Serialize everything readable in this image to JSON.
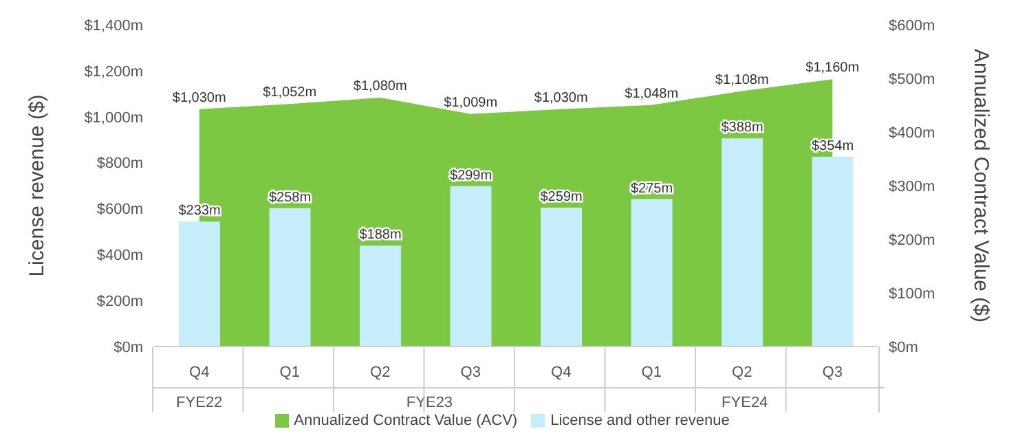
{
  "chart_data": {
    "type": "bar",
    "ylabel": "License revenue ($)",
    "y2label": "Annualized Contract Value ($)",
    "categories": [
      "Q4",
      "Q1",
      "Q2",
      "Q3",
      "Q4",
      "Q1",
      "Q2",
      "Q3"
    ],
    "annotations": [
      "FYE22",
      "FYE23",
      "FYE24"
    ],
    "series": [
      {
        "name": "Annualized Contract Value (ACV)",
        "type": "area",
        "color": "#7cc843",
        "values": [
          1030,
          1052,
          1080,
          1009,
          1030,
          1048,
          1108,
          1160
        ],
        "value_labels": [
          "$1,030m",
          "$1,052m",
          "$1,080m",
          "$1,009m",
          "$1,030m",
          "$1,048m",
          "$1,108m",
          "$1,160m"
        ]
      },
      {
        "name": "License and other revenue",
        "axis": "y2",
        "color": "#c5eefa",
        "values": [
          233,
          258,
          188,
          299,
          259,
          275,
          388,
          354
        ],
        "value_labels": [
          "$233m",
          "$258m",
          "$188m",
          "$299m",
          "$259m",
          "$275m",
          "$388m",
          "$354m"
        ]
      }
    ],
    "ylim": [
      0,
      1400
    ],
    "yticks": [
      {
        "value": 0,
        "label": "$0m"
      },
      {
        "value": 200,
        "label": "$200m"
      },
      {
        "value": 400,
        "label": "$400m"
      },
      {
        "value": 600,
        "label": "$600m"
      },
      {
        "value": 800,
        "label": "$800m"
      },
      {
        "value": 1000,
        "label": "$1,000m"
      },
      {
        "value": 1200,
        "label": "$1,200m"
      },
      {
        "value": 1400,
        "label": "$1,400m"
      }
    ],
    "y2lim": [
      0,
      600
    ],
    "y2ticks": [
      {
        "value": 0,
        "label": "$0m"
      },
      {
        "value": 100,
        "label": "$100m"
      },
      {
        "value": 200,
        "label": "$200m"
      },
      {
        "value": 300,
        "label": "$300m"
      },
      {
        "value": 400,
        "label": "$400m"
      },
      {
        "value": 500,
        "label": "$500m"
      },
      {
        "value": 600,
        "label": "$600m"
      }
    ],
    "grid": false,
    "legend": "bottom"
  }
}
